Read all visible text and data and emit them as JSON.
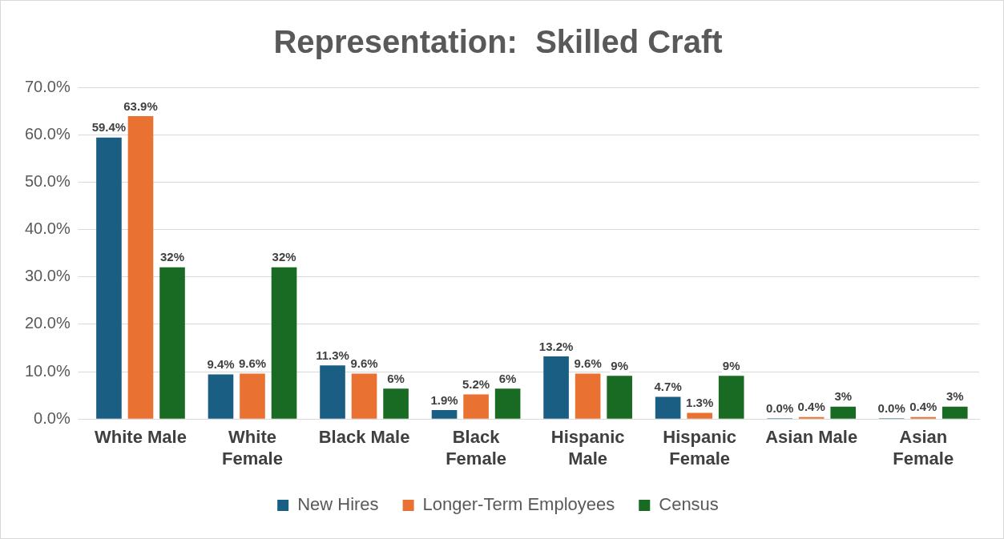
{
  "chart_data": {
    "type": "bar",
    "title": "Representation:  Skilled Craft",
    "categories": [
      "White Male",
      "White Female",
      "Black Male",
      "Black Female",
      "Hispanic Male",
      "Hispanic Female",
      "Asian Male",
      "Asian Female"
    ],
    "series": [
      {
        "name": "New Hires",
        "color": "#1b5e83",
        "values": [
          59.4,
          9.4,
          11.3,
          1.9,
          13.2,
          4.7,
          0.0,
          0.0
        ],
        "value_labels": [
          "59.4%",
          "9.4%",
          "11.3%",
          "1.9%",
          "13.2%",
          "4.7%",
          "0.0%",
          "0.0%"
        ]
      },
      {
        "name": "Longer-Term Employees",
        "color": "#e97132",
        "values": [
          63.9,
          9.6,
          9.6,
          5.2,
          9.6,
          1.3,
          0.4,
          0.4
        ],
        "value_labels": [
          "63.9%",
          "9.6%",
          "9.6%",
          "5.2%",
          "9.6%",
          "1.3%",
          "0.4%",
          "0.4%"
        ]
      },
      {
        "name": "Census",
        "color": "#196b24",
        "values": [
          32,
          32,
          6.4,
          6.4,
          9.1,
          9.1,
          2.6,
          2.6
        ],
        "value_labels": [
          "32%",
          "32%",
          "6%",
          "6%",
          "9%",
          "9%",
          "3%",
          "3%"
        ]
      }
    ],
    "ylim": [
      0,
      70
    ],
    "yticks": [
      {
        "value": 0,
        "label": "0.0%"
      },
      {
        "value": 10,
        "label": "10.0%"
      },
      {
        "value": 20,
        "label": "20.0%"
      },
      {
        "value": 30,
        "label": "30.0%"
      },
      {
        "value": 40,
        "label": "40.0%"
      },
      {
        "value": 50,
        "label": "50.0%"
      },
      {
        "value": 60,
        "label": "60.0%"
      },
      {
        "value": 70,
        "label": "70.0%"
      }
    ],
    "grid": "y",
    "legend": "bottom"
  }
}
